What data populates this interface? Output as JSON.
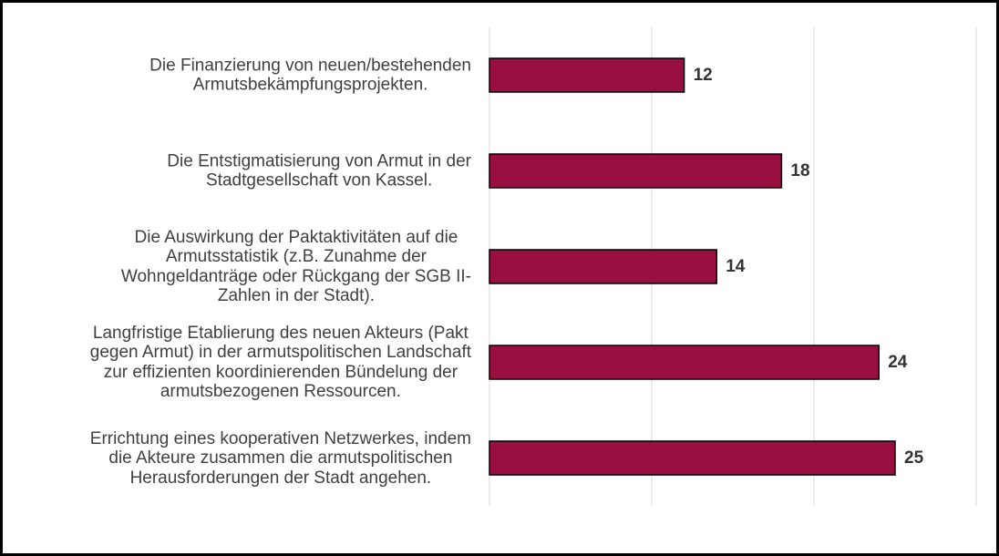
{
  "chart_data": {
    "type": "barh",
    "categories": [
      "Die Finanzierung von neuen/bestehenden\nArmutsbekämpfungsprojekten.",
      "Die Entstigmatisierung von Armut in der\nStadtgesellschaft von Kassel.",
      "Die Auswirkung der Paktaktivitäten auf die\nArmutsstatistik (z.B. Zunahme der\nWohngeldanträge oder Rückgang der SGB II-\nZahlen in der Stadt).",
      "Langfristige Etablierung des neuen Akteurs (Pakt\ngegen Armut) in der armutspolitischen Landschaft\nzur effizienten koordinierenden Bündelung der\narmutsbezogenen Ressourcen.",
      "Errichtung eines kooperativen Netzwerkes, indem\ndie Akteure zusammen die armutspolitischen\nHerausforderungen der Stadt angehen."
    ],
    "values": [
      12,
      18,
      14,
      24,
      25
    ],
    "color": "#990f42",
    "xlim": [
      0,
      30
    ],
    "xticks": [
      0,
      10,
      20,
      30
    ],
    "grid": true
  }
}
